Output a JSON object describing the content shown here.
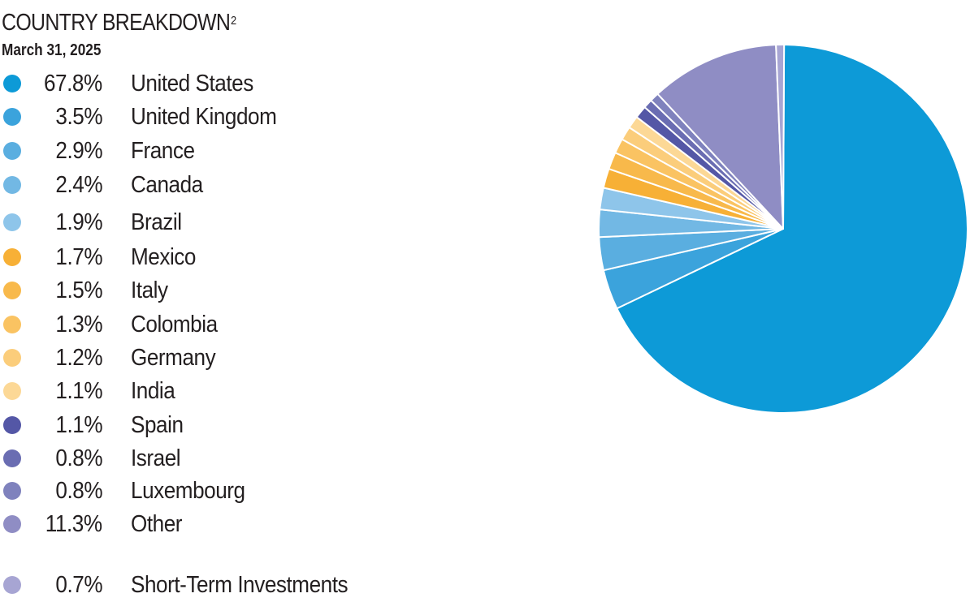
{
  "title": "COUNTRY BREAKDOWN",
  "title_superscript": "2",
  "subtitle": "March 31, 2025",
  "chart_data": {
    "type": "pie",
    "title": "COUNTRY BREAKDOWN",
    "subtitle": "March 31, 2025",
    "legend_position": "left",
    "slices": [
      {
        "label": "United States",
        "value": 67.8,
        "value_text": "67.8%",
        "color": "#0d9ad7"
      },
      {
        "label": "United Kingdom",
        "value": 3.5,
        "value_text": "3.5%",
        "color": "#3ba3dc"
      },
      {
        "label": "France",
        "value": 2.9,
        "value_text": "2.9%",
        "color": "#5aaee0"
      },
      {
        "label": "Canada",
        "value": 2.4,
        "value_text": "2.4%",
        "color": "#72b8e4"
      },
      {
        "label": "Brazil",
        "value": 1.9,
        "value_text": "1.9%",
        "color": "#8ec5ea"
      },
      {
        "label": "Mexico",
        "value": 1.7,
        "value_text": "1.7%",
        "color": "#f7b036"
      },
      {
        "label": "Italy",
        "value": 1.5,
        "value_text": "1.5%",
        "color": "#f8b94b"
      },
      {
        "label": "Colombia",
        "value": 1.3,
        "value_text": "1.3%",
        "color": "#fac362"
      },
      {
        "label": "Germany",
        "value": 1.2,
        "value_text": "1.2%",
        "color": "#fbcd7b"
      },
      {
        "label": "India",
        "value": 1.1,
        "value_text": "1.1%",
        "color": "#fcd896"
      },
      {
        "label": "Spain",
        "value": 1.1,
        "value_text": "1.1%",
        "color": "#5457a6"
      },
      {
        "label": "Israel",
        "value": 0.8,
        "value_text": "0.8%",
        "color": "#6a6db2"
      },
      {
        "label": "Luxembourg",
        "value": 0.8,
        "value_text": "0.8%",
        "color": "#7f82bd"
      },
      {
        "label": "Other",
        "value": 11.3,
        "value_text": "11.3%",
        "color": "#8f8dc4"
      },
      {
        "label": "Short-Term Investments",
        "value": 0.7,
        "value_text": "0.7%",
        "color": "#a7a5d3"
      }
    ]
  }
}
